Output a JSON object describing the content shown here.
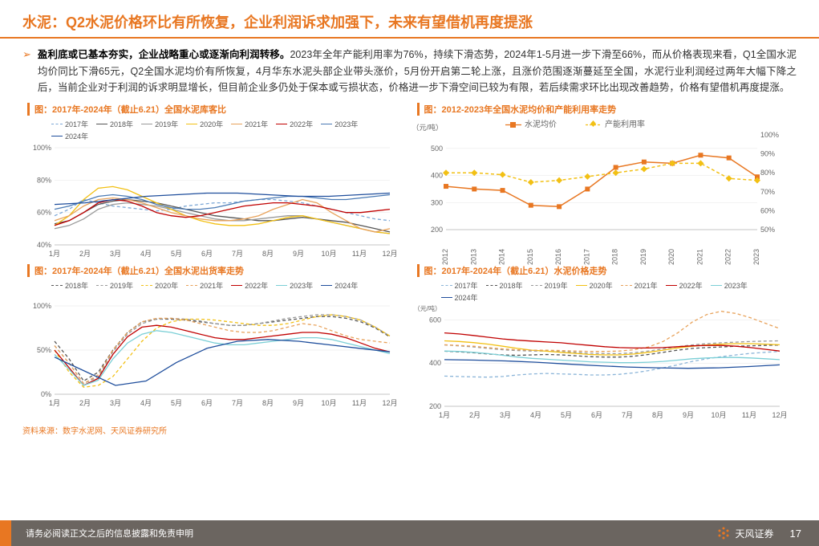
{
  "header": {
    "prefix": "水泥：",
    "title": "Q2水泥价格环比有所恢复，企业利润诉求加强下，未来有望借机再度提涨"
  },
  "bullet": {
    "lead": "盈利底或已基本夯实，企业战略重心或逐渐向利润转移。",
    "text": "2023年全年产能利用率为76%，持续下滑态势，2024年1-5月进一步下滑至66%，而从价格表现来看，Q1全国水泥均价同比下滑65元，Q2全国水泥均价有所恢复，4月华东水泥头部企业带头涨价，5月份开启第二轮上涨，且涨价范围逐渐蔓延至全国，水泥行业利润经过两年大幅下降之后，当前企业对于利润的诉求明显增长，但目前企业多仍处于保本或亏损状态，价格进一步下滑空间已较为有限，若后续需求环比出现改善趋势，价格有望借机再度提涨。"
  },
  "source": "资料来源：数字水泥网、天风证券研究所",
  "footer": {
    "disclaimer": "请务必阅读正文之后的信息披露和免责申明",
    "company": "天风证券",
    "page": "17"
  },
  "chart1": {
    "title": "图：2017年-2024年（截止6.21）全国水泥库客比",
    "ylabel_suffix": "%",
    "ylim": [
      40,
      100
    ],
    "yticks": [
      40,
      60,
      80,
      100
    ],
    "xticks": [
      "1月",
      "2月",
      "3月",
      "4月",
      "5月",
      "6月",
      "7月",
      "8月",
      "9月",
      "10月",
      "11月",
      "12月"
    ],
    "series": [
      {
        "name": "2017年",
        "color": "#7ba7d6",
        "dash": true,
        "data": [
          58,
          62,
          68,
          66,
          64,
          63,
          62,
          61,
          62,
          64,
          65,
          66,
          66,
          67,
          68,
          68,
          67,
          66,
          64,
          62,
          60,
          58,
          56,
          55
        ]
      },
      {
        "name": "2018年",
        "color": "#555555",
        "dash": false,
        "data": [
          53,
          55,
          60,
          65,
          67,
          68,
          67,
          66,
          64,
          62,
          60,
          58,
          57,
          56,
          55,
          55,
          56,
          57,
          56,
          55,
          54,
          52,
          50,
          48
        ]
      },
      {
        "name": "2019年",
        "color": "#999999",
        "dash": false,
        "data": [
          50,
          52,
          56,
          62,
          65,
          66,
          65,
          64,
          62,
          60,
          58,
          56,
          55,
          55,
          56,
          57,
          58,
          58,
          56,
          54,
          52,
          50,
          48,
          47
        ]
      },
      {
        "name": "2020年",
        "color": "#f2c014",
        "dash": false,
        "data": [
          52,
          58,
          68,
          75,
          76,
          74,
          70,
          66,
          62,
          58,
          55,
          53,
          52,
          52,
          53,
          55,
          57,
          58,
          56,
          54,
          52,
          50,
          48,
          47
        ]
      },
      {
        "name": "2021年",
        "color": "#e8a25a",
        "dash": false,
        "data": [
          55,
          58,
          64,
          68,
          69,
          68,
          66,
          63,
          60,
          58,
          56,
          55,
          55,
          56,
          58,
          62,
          65,
          68,
          66,
          60,
          55,
          50,
          48,
          50
        ]
      },
      {
        "name": "2022年",
        "color": "#c00000",
        "dash": false,
        "data": [
          52,
          55,
          60,
          66,
          68,
          67,
          64,
          60,
          58,
          57,
          58,
          60,
          62,
          64,
          65,
          66,
          66,
          65,
          64,
          62,
          60,
          60,
          61,
          62
        ]
      },
      {
        "name": "2023年",
        "color": "#4a7ab4",
        "dash": false,
        "data": [
          62,
          64,
          67,
          70,
          71,
          70,
          68,
          65,
          63,
          62,
          62,
          63,
          65,
          67,
          68,
          69,
          70,
          70,
          69,
          68,
          68,
          69,
          70,
          71
        ]
      },
      {
        "name": "2024年",
        "color": "#1f4e9c",
        "dash": false,
        "data": [
          65,
          66,
          68,
          70,
          71,
          72,
          72,
          71,
          70,
          70,
          71,
          72
        ]
      }
    ]
  },
  "chart2": {
    "title": "图：2012-2023年全国水泥均价和产能利用率走势",
    "y1": {
      "label": "（元/吨）",
      "lim": [
        200,
        550
      ],
      "ticks": [
        200,
        300,
        400,
        500
      ]
    },
    "y2": {
      "suffix": "%",
      "lim": [
        50,
        100
      ],
      "ticks": [
        50,
        60,
        70,
        80,
        90,
        100
      ]
    },
    "xticks": [
      "2012",
      "2013",
      "2014",
      "2015",
      "2016",
      "2017",
      "2018",
      "2019",
      "2020",
      "2021",
      "2022",
      "2023"
    ],
    "series": [
      {
        "name": "水泥均价",
        "color": "#e87722",
        "marker": "square",
        "axis": "y1",
        "data": [
          360,
          350,
          345,
          290,
          285,
          350,
          430,
          450,
          445,
          475,
          465,
          395
        ]
      },
      {
        "name": "产能利用率",
        "color": "#f2c014",
        "marker": "diamond",
        "dash": true,
        "axis": "y2",
        "data": [
          80,
          80,
          79,
          75,
          76,
          78,
          80,
          82,
          85,
          85,
          77,
          76
        ]
      }
    ]
  },
  "chart3": {
    "title": "图：2017年-2024年（截止6.21）全国水泥出货率走势",
    "ylabel_suffix": "%",
    "ylim": [
      0,
      110
    ],
    "yticks": [
      0,
      50,
      100
    ],
    "xticks": [
      "1月",
      "2月",
      "3月",
      "4月",
      "5月",
      "6月",
      "7月",
      "8月",
      "9月",
      "10月",
      "11月",
      "12月"
    ],
    "series": [
      {
        "name": "2018年",
        "color": "#555555",
        "dash": true,
        "data": [
          60,
          40,
          15,
          25,
          50,
          70,
          82,
          85,
          85,
          84,
          82,
          80,
          78,
          78,
          80,
          82,
          84,
          86,
          88,
          88,
          86,
          82,
          75,
          65
        ]
      },
      {
        "name": "2019年",
        "color": "#999999",
        "dash": true,
        "data": [
          55,
          35,
          12,
          20,
          48,
          68,
          80,
          85,
          86,
          85,
          83,
          80,
          78,
          78,
          80,
          83,
          86,
          88,
          90,
          90,
          88,
          84,
          76,
          66
        ]
      },
      {
        "name": "2020年",
        "color": "#f2c014",
        "dash": true,
        "data": [
          50,
          25,
          8,
          10,
          20,
          40,
          60,
          75,
          82,
          85,
          85,
          84,
          82,
          80,
          78,
          78,
          80,
          84,
          88,
          90,
          88,
          84,
          76,
          66
        ]
      },
      {
        "name": "2021年",
        "color": "#e8a25a",
        "dash": true,
        "data": [
          55,
          35,
          12,
          22,
          50,
          70,
          82,
          86,
          86,
          84,
          80,
          76,
          72,
          70,
          70,
          72,
          76,
          80,
          78,
          72,
          66,
          62,
          60,
          58
        ]
      },
      {
        "name": "2022年",
        "color": "#c00000",
        "dash": false,
        "data": [
          50,
          30,
          10,
          18,
          45,
          65,
          76,
          78,
          76,
          72,
          68,
          64,
          62,
          62,
          64,
          66,
          68,
          70,
          70,
          68,
          64,
          58,
          52,
          48
        ]
      },
      {
        "name": "2023年",
        "color": "#7bcfd6",
        "dash": false,
        "data": [
          45,
          28,
          10,
          16,
          40,
          58,
          68,
          72,
          70,
          66,
          62,
          58,
          56,
          56,
          58,
          60,
          62,
          64,
          64,
          62,
          58,
          54,
          50,
          46
        ]
      },
      {
        "name": "2024年",
        "color": "#1f4e9c",
        "dash": false,
        "data": [
          42,
          26,
          10,
          15,
          36,
          52,
          60,
          62,
          60,
          56,
          52,
          48
        ]
      }
    ]
  },
  "chart4": {
    "title": "图：2017年-2024年（截止6.21）水泥价格走势",
    "ylabel": "（元/吨）",
    "ylim": [
      200,
      650
    ],
    "yticks": [
      200,
      400,
      600
    ],
    "xticks": [
      "1月",
      "2月",
      "3月",
      "4月",
      "5月",
      "6月",
      "7月",
      "8月",
      "9月",
      "10月",
      "11月",
      "12月"
    ],
    "series": [
      {
        "name": "2017年",
        "color": "#8ab4d8",
        "dash": true,
        "data": [
          340,
          338,
          336,
          335,
          338,
          345,
          350,
          352,
          350,
          348,
          345,
          345,
          348,
          355,
          365,
          378,
          392,
          408,
          420,
          430,
          438,
          445,
          450,
          454
        ]
      },
      {
        "name": "2018年",
        "color": "#555555",
        "dash": true,
        "data": [
          455,
          452,
          448,
          442,
          438,
          436,
          438,
          440,
          438,
          434,
          430,
          428,
          428,
          432,
          440,
          450,
          460,
          468,
          472,
          475,
          478,
          480,
          482,
          484
        ]
      },
      {
        "name": "2019年",
        "color": "#999999",
        "dash": true,
        "data": [
          484,
          480,
          475,
          468,
          462,
          458,
          456,
          456,
          454,
          450,
          446,
          444,
          444,
          448,
          456,
          466,
          476,
          484,
          490,
          494,
          497,
          500,
          502,
          503
        ]
      },
      {
        "name": "2020年",
        "color": "#f2c014",
        "dash": false,
        "data": [
          503,
          500,
          495,
          488,
          478,
          468,
          460,
          455,
          450,
          445,
          440,
          438,
          438,
          442,
          450,
          460,
          470,
          478,
          484,
          488,
          490,
          490,
          488,
          485
        ]
      },
      {
        "name": "2021年",
        "color": "#e8a25a",
        "dash": true,
        "data": [
          485,
          482,
          478,
          472,
          466,
          462,
          460,
          460,
          458,
          456,
          454,
          454,
          456,
          462,
          475,
          500,
          540,
          590,
          625,
          640,
          630,
          610,
          585,
          560
        ]
      },
      {
        "name": "2022年",
        "color": "#c00000",
        "dash": false,
        "data": [
          540,
          535,
          528,
          520,
          512,
          506,
          502,
          498,
          494,
          488,
          482,
          476,
          472,
          470,
          470,
          472,
          476,
          480,
          482,
          482,
          478,
          472,
          464,
          456
        ]
      },
      {
        "name": "2023年",
        "color": "#7bcfd6",
        "dash": false,
        "data": [
          456,
          454,
          450,
          444,
          436,
          428,
          422,
          418,
          414,
          410,
          406,
          404,
          402,
          402,
          404,
          408,
          414,
          420,
          424,
          426,
          426,
          424,
          420,
          416
        ]
      },
      {
        "name": "2024年",
        "color": "#1f4e9c",
        "dash": false,
        "data": [
          416,
          414,
          410,
          404,
          396,
          388,
          382,
          378,
          376,
          378,
          384,
          392
        ]
      }
    ]
  }
}
